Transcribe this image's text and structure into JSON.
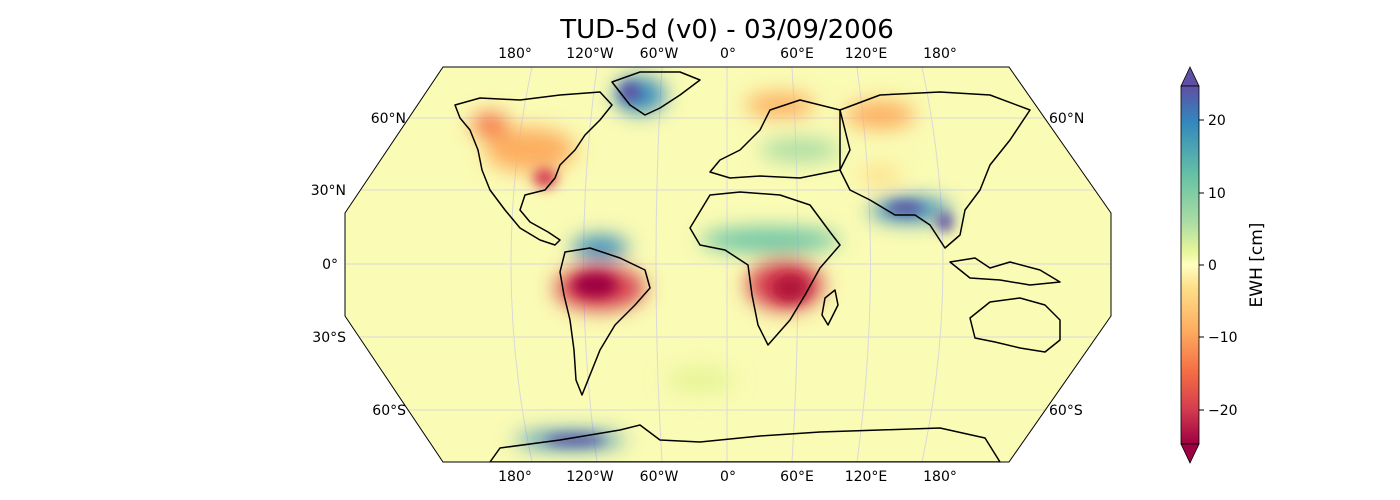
{
  "title": "TUD-5d (v0) - 03/09/2006",
  "map": {
    "projection": "Robinson",
    "land_fill": "#f8fbb0",
    "ocean_fill": "#fafbb4",
    "coastline_color": "#000000",
    "gridline_color": "#d9d9d9",
    "lon_labels": [
      "180°",
      "120°W",
      "60°W",
      "0°",
      "60°E",
      "120°E",
      "180°"
    ],
    "lat_labels_left": [
      "60°N",
      "30°N",
      "0°",
      "30°S",
      "60°S"
    ],
    "lat_labels_right": [
      "60°N",
      "60°S"
    ]
  },
  "colorbar": {
    "label": "EWH [cm]",
    "ticks": [
      "20",
      "10",
      "0",
      "−10",
      "−20"
    ],
    "range": [
      -25,
      25
    ],
    "colormap": "Spectral",
    "extend": "both"
  },
  "anomalies": [
    {
      "region": "Amazon basin",
      "sign": "negative"
    },
    {
      "region": "Southern Africa (Zambezi)",
      "sign": "negative"
    },
    {
      "region": "Sahel band",
      "sign": "positive"
    },
    {
      "region": "Northern India / Bangladesh",
      "sign": "positive"
    },
    {
      "region": "Central America / Orinoco",
      "sign": "positive"
    },
    {
      "region": "Greenland",
      "sign": "positive"
    },
    {
      "region": "North America interior",
      "sign": "negative"
    },
    {
      "region": "Siberia",
      "sign": "negative"
    },
    {
      "region": "West Antarctica",
      "sign": "positive"
    }
  ]
}
